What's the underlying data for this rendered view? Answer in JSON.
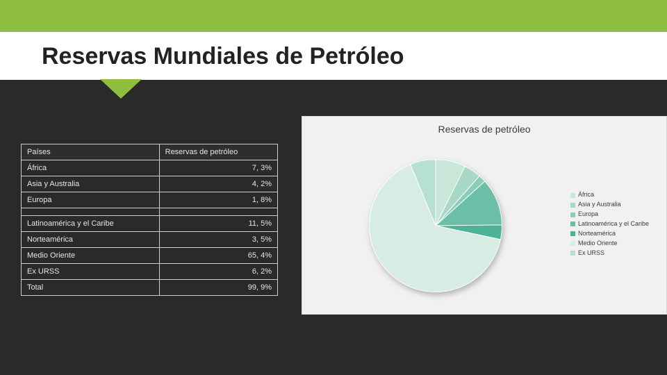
{
  "accent_color": "#8fbf3f",
  "dark_color": "#2a2a2a",
  "title": "Reservas Mundiales de Petróleo",
  "table": {
    "header_country": "Países",
    "header_value": "Reservas de petróleo",
    "rows": [
      {
        "label": "África",
        "value": "7, 3%"
      },
      {
        "label": "Asia y Australia",
        "value": "4, 2%"
      },
      {
        "label": "Europa",
        "value": "1, 8%"
      }
    ],
    "rows2": [
      {
        "label": "Latinoamérica y el Caribe",
        "value": "11, 5%"
      },
      {
        "label": "Norteamérica",
        "value": "3, 5%"
      },
      {
        "label": "Medio Oriente",
        "value": "65, 4%"
      },
      {
        "label": "Ex URSS",
        "value": "6, 2%"
      },
      {
        "label": "Total",
        "value": "99, 9%"
      }
    ]
  },
  "chart": {
    "title": "Reservas de petróleo",
    "type": "pie",
    "background": "#f1f1f1",
    "title_fontsize": 14,
    "legend_fontsize": 9,
    "start_angle_deg": -90,
    "slices": [
      {
        "label": "África",
        "pct": 7.3,
        "color": "#c9e7d9"
      },
      {
        "label": "Asia y Australia",
        "pct": 4.2,
        "color": "#a9d9c6"
      },
      {
        "label": "Europa",
        "pct": 1.8,
        "color": "#8accb6"
      },
      {
        "label": "Latinoamérica y el Caribe",
        "pct": 11.5,
        "color": "#6bbfa7"
      },
      {
        "label": "Norteamérica",
        "pct": 3.5,
        "color": "#4eb299"
      },
      {
        "label": "Medio Oriente",
        "pct": 65.4,
        "color": "#d7ede3"
      },
      {
        "label": "Ex URSS",
        "pct": 6.2,
        "color": "#b6e0cf"
      }
    ]
  }
}
